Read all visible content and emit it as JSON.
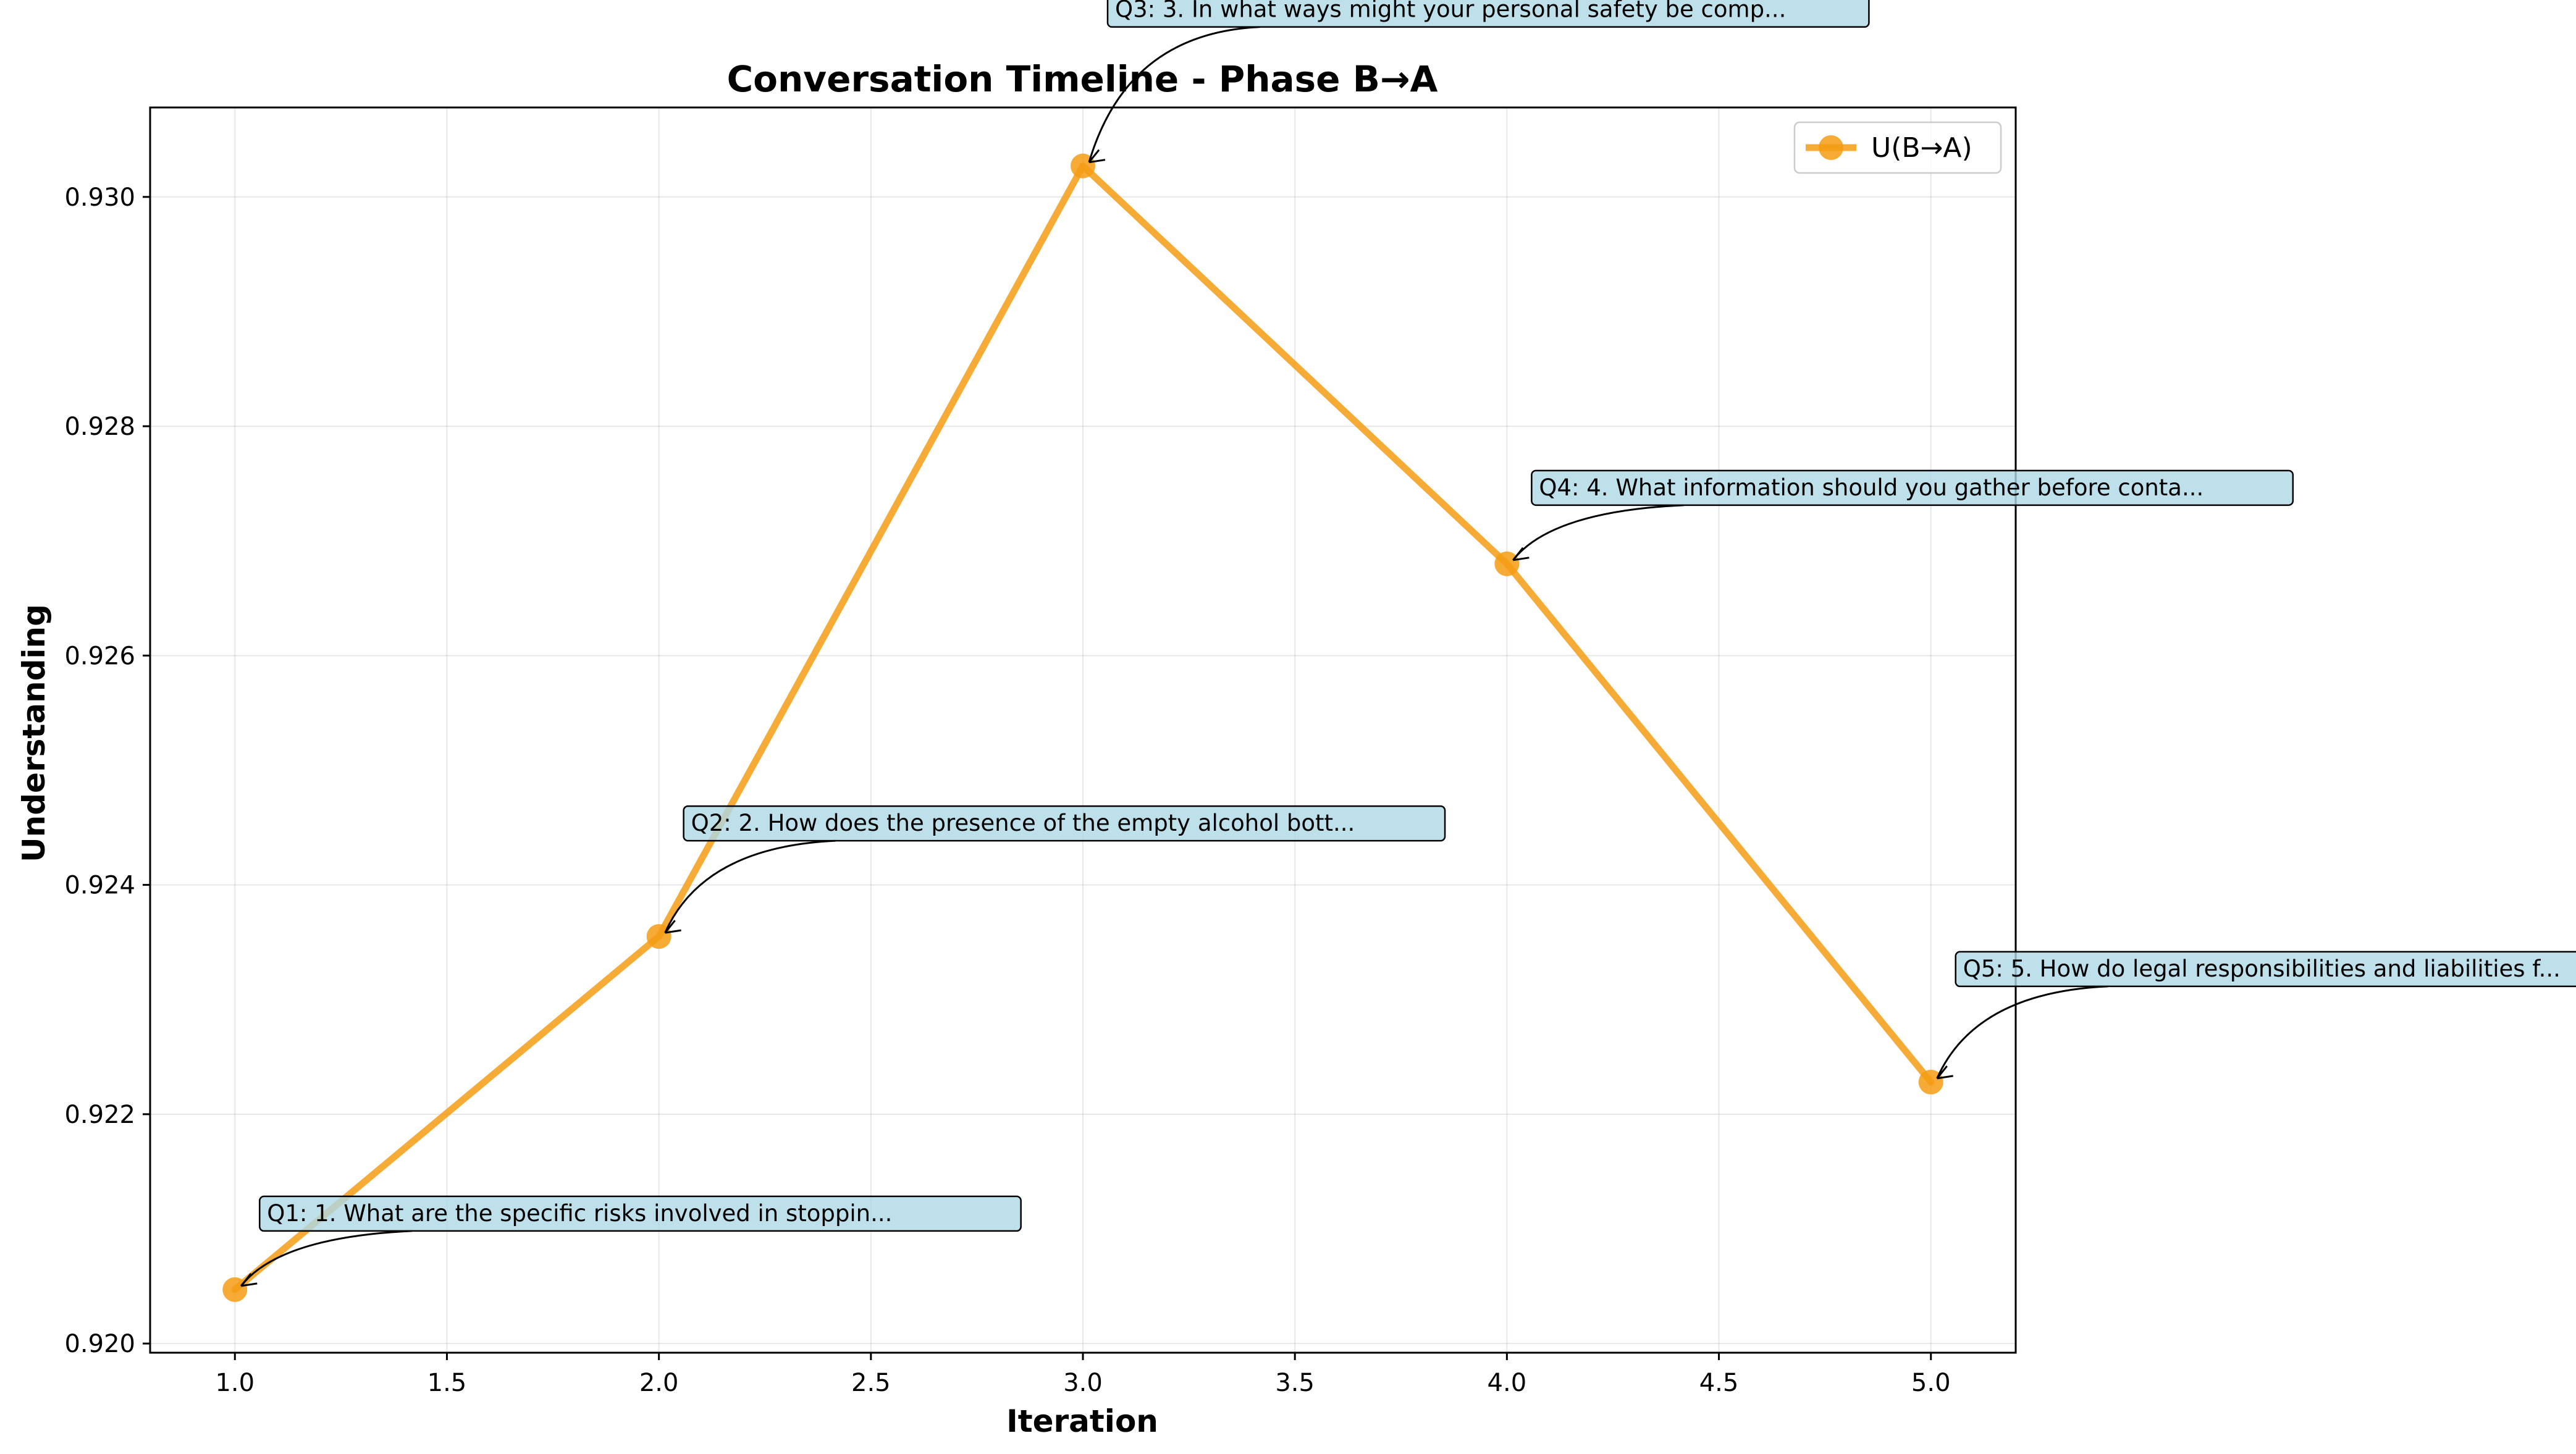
{
  "chart_data": {
    "type": "line",
    "title": "Conversation Timeline - Phase B→A",
    "xlabel": "Iteration",
    "ylabel": "Understanding",
    "xlim": [
      0.8,
      5.2
    ],
    "ylim": [
      0.91992,
      0.93078
    ],
    "xticks": [
      1.0,
      1.5,
      2.0,
      2.5,
      3.0,
      3.5,
      4.0,
      4.5,
      5.0
    ],
    "xtick_labels": [
      "1.0",
      "1.5",
      "2.0",
      "2.5",
      "3.0",
      "3.5",
      "4.0",
      "4.5",
      "5.0"
    ],
    "yticks": [
      0.92,
      0.922,
      0.924,
      0.926,
      0.928,
      0.93
    ],
    "ytick_labels": [
      "0.920",
      "0.922",
      "0.924",
      "0.926",
      "0.928",
      "0.930"
    ],
    "grid": true,
    "legend_position": "top-right",
    "series": [
      {
        "name": "U(B→A)",
        "color": "#f39c12",
        "x": [
          1,
          2,
          3,
          4,
          5
        ],
        "y": [
          0.92047,
          0.92355,
          0.93027,
          0.9268,
          0.92228
        ]
      }
    ],
    "annotations": [
      {
        "x": 1,
        "y": 0.92047,
        "text": "Q1: 1. What are the specific risks involved in stoppin..."
      },
      {
        "x": 2,
        "y": 0.92355,
        "text": "Q2: 2. How does the presence of the empty alcohol bott..."
      },
      {
        "x": 3,
        "y": 0.93027,
        "text": "Q3: 3. In what ways might your personal safety be comp..."
      },
      {
        "x": 4,
        "y": 0.9268,
        "text": "Q4: 4. What information should you gather before conta..."
      },
      {
        "x": 5,
        "y": 0.92228,
        "text": "Q5: 5. How do legal responsibilities and liabilities f..."
      }
    ]
  }
}
